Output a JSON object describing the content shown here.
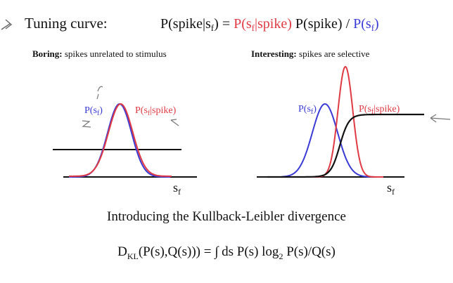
{
  "header": {
    "title": "Tuning curve:",
    "eq_lhs": "P(spike|s",
    "eq_lhs_sub": "f",
    "eq_lhs_close": ")",
    "eq_equals": " = ",
    "eq_red": "P(s",
    "eq_red_sub": "f",
    "eq_red_close": "|spike)",
    "eq_mid": " P(spike) / ",
    "eq_blue": "P(s",
    "eq_blue_sub": "f",
    "eq_blue_close": ")"
  },
  "left_panel": {
    "heading_bold": "Boring:",
    "heading_rest": " spikes unrelated to stimulus",
    "label_blue": "P(s",
    "label_blue_sub": "f",
    "label_blue_close": ")",
    "label_red": "P(s",
    "label_red_sub": "f",
    "label_red_close": "|spike)",
    "axis": "s",
    "axis_sub": "f"
  },
  "right_panel": {
    "heading_bold": "Interesting:",
    "heading_rest": " spikes are selective",
    "label_blue": "P(s",
    "label_blue_sub": "f",
    "label_blue_close": ")",
    "label_red": "P(s",
    "label_red_sub": "f",
    "label_red_close": "|spike)",
    "axis": "s",
    "axis_sub": "f"
  },
  "intro": "Introducing the Kullback-Leibler divergence",
  "formula": {
    "d": "D",
    "d_sub": "KL",
    "part1": "(P(s),Q(s))) = ∫ ds P(s) log",
    "log_sub": "2",
    "part2": " P(s)/Q(s)"
  },
  "colors": {
    "blue": "#3a3ad6",
    "red": "#e03a44",
    "black": "#111111"
  }
}
